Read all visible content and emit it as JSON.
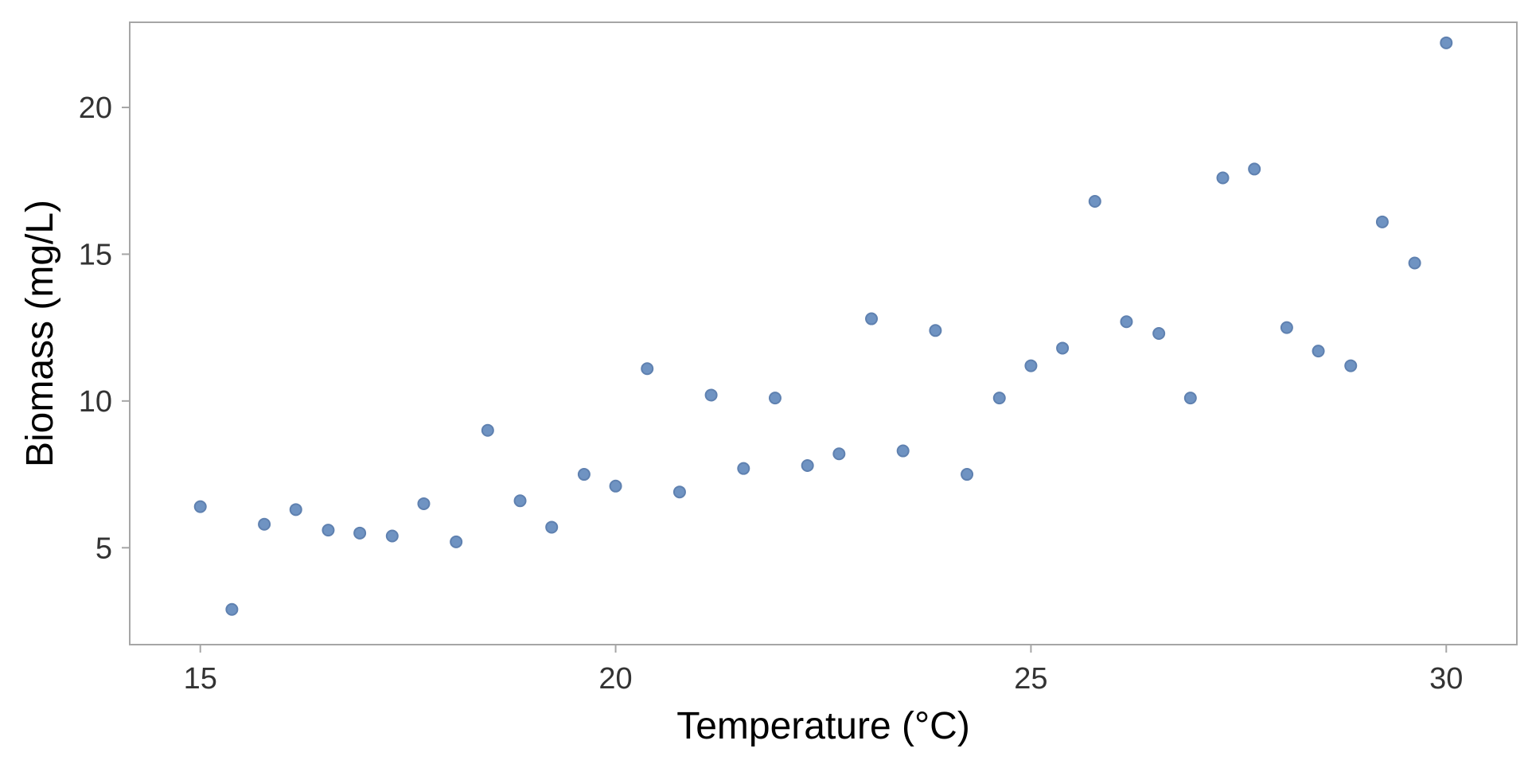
{
  "chart_data": {
    "type": "scatter",
    "xlabel": "Temperature (°C)",
    "ylabel": "Biomass (mg/L)",
    "xlim": [
      14.15,
      30.85
    ],
    "ylim": [
      1.7,
      22.9
    ],
    "x_ticks": [
      15,
      20,
      25,
      30
    ],
    "y_ticks": [
      5,
      10,
      15,
      20
    ],
    "grid": false,
    "point_color": "#6f93c2",
    "point_edge_color": "#5f81b0",
    "series": [
      {
        "points": [
          {
            "x": 15.0,
            "y": 6.4
          },
          {
            "x": 15.38,
            "y": 2.9
          },
          {
            "x": 15.77,
            "y": 5.8
          },
          {
            "x": 16.15,
            "y": 6.3
          },
          {
            "x": 16.54,
            "y": 5.6
          },
          {
            "x": 16.92,
            "y": 5.5
          },
          {
            "x": 17.31,
            "y": 5.4
          },
          {
            "x": 17.69,
            "y": 6.5
          },
          {
            "x": 18.08,
            "y": 5.2
          },
          {
            "x": 18.46,
            "y": 9.0
          },
          {
            "x": 18.85,
            "y": 6.6
          },
          {
            "x": 19.23,
            "y": 5.7
          },
          {
            "x": 19.62,
            "y": 7.5
          },
          {
            "x": 20.0,
            "y": 7.1
          },
          {
            "x": 20.38,
            "y": 11.1
          },
          {
            "x": 20.77,
            "y": 6.9
          },
          {
            "x": 21.15,
            "y": 10.2
          },
          {
            "x": 21.54,
            "y": 7.7
          },
          {
            "x": 21.92,
            "y": 10.1
          },
          {
            "x": 22.31,
            "y": 7.8
          },
          {
            "x": 22.69,
            "y": 8.2
          },
          {
            "x": 23.08,
            "y": 12.8
          },
          {
            "x": 23.46,
            "y": 8.3
          },
          {
            "x": 23.85,
            "y": 12.4
          },
          {
            "x": 24.23,
            "y": 7.5
          },
          {
            "x": 24.62,
            "y": 10.1
          },
          {
            "x": 25.0,
            "y": 11.2
          },
          {
            "x": 25.38,
            "y": 11.8
          },
          {
            "x": 25.77,
            "y": 16.8
          },
          {
            "x": 26.15,
            "y": 12.7
          },
          {
            "x": 26.54,
            "y": 12.3
          },
          {
            "x": 26.92,
            "y": 10.1
          },
          {
            "x": 27.31,
            "y": 17.6
          },
          {
            "x": 27.69,
            "y": 17.9
          },
          {
            "x": 28.08,
            "y": 12.5
          },
          {
            "x": 28.46,
            "y": 11.7
          },
          {
            "x": 28.85,
            "y": 11.2
          },
          {
            "x": 29.23,
            "y": 16.1
          },
          {
            "x": 29.62,
            "y": 14.7
          },
          {
            "x": 30.0,
            "y": 22.2
          }
        ]
      }
    ]
  }
}
